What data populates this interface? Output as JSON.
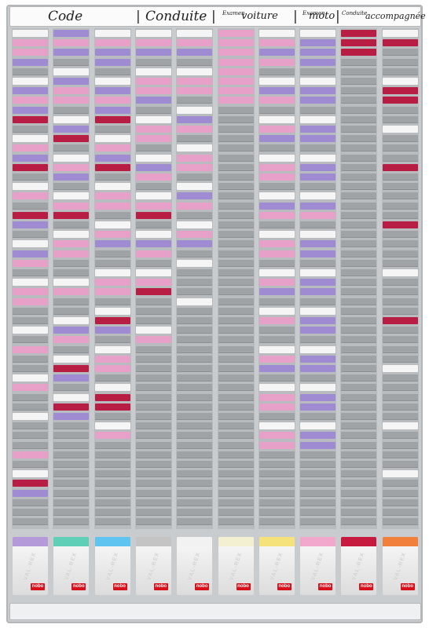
{
  "header": {
    "code": "Code",
    "conduite": "Conduite",
    "examen_voiture_small": "Examen",
    "examen_voiture_big": "voiture",
    "examen_moto_small": "Examen",
    "examen_moto_big": "moto",
    "conduite_small": "Conduite",
    "accompagnee": "accompagnée",
    "sep": "|"
  },
  "pockets": {
    "brand_text": "VAL-REX",
    "logo_text": "nobo",
    "cap_colors": [
      "#b49ad8",
      "#5fcfb8",
      "#5fc4ef",
      "#c4c4c4",
      "#f2f2f2",
      "#f3f0d2",
      "#f5e27a",
      "#f1a8cc",
      "#c71a3f",
      "#f0803c"
    ]
  },
  "colors": {
    "grey": "#9fa3a6",
    "white": "#f5f5f6",
    "pink": "#e7a1c8",
    "violet": "#9f8bd1",
    "red": "#b81d44"
  }
}
